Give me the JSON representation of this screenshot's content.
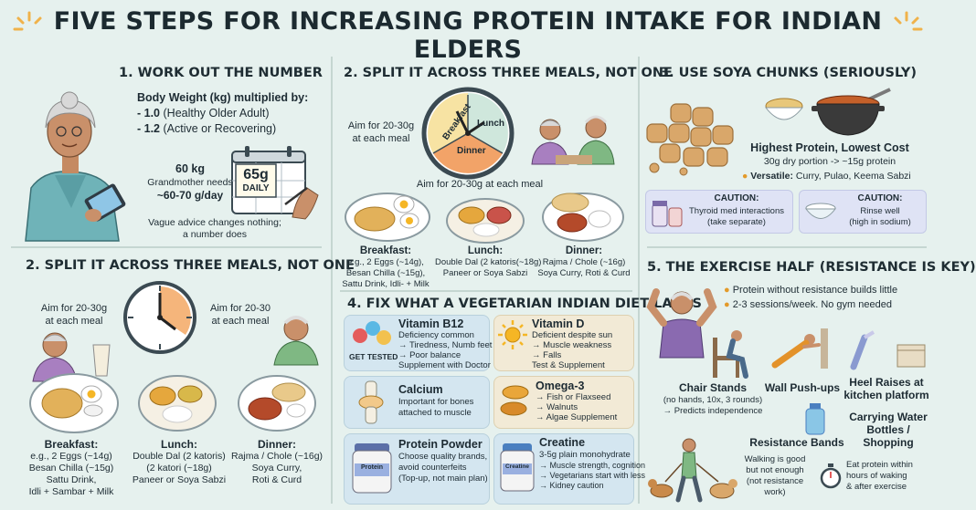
{
  "title": "FIVE STEPS FOR INCREASING PROTEIN INTAKE FOR INDIAN ELDERS",
  "s1": {
    "heading": "1. WORK OUT THE NUMBER",
    "intro": "Body Weight (kg) multiplied by:",
    "m1_val": "- 1.0",
    "m1_txt": "(Healthy Older Adult)",
    "m2_val": "- 1.2",
    "m2_txt": "(Active or Recovering)",
    "kg": "60 kg",
    "needs1": "Grandmother needs",
    "needs2": "~60-70 g/day",
    "calendar_val": "65g",
    "calendar_txt": "DAILY",
    "advice1": "Vague advice changes nothing;",
    "advice2": "a number does"
  },
  "s2top": {
    "heading": "2. SPLIT IT ACROSS THREE MEALS, NOT ONE",
    "aim1": "Aim for 20-30g",
    "aim2": "at each meal",
    "clock": [
      "Breakfast",
      "Lunch",
      "Dinner"
    ],
    "aim_mid": "Aim for 20-30g at each meal",
    "b_title": "Breakfast:",
    "b1": "e.g., 2 Eggs (~14g),",
    "b2": "Besan Chilla (~15g),",
    "b3": "Sattu Drink, Idli- + Milk",
    "l_title": "Lunch:",
    "l1": "Double Dal (2 katoris(~18g)",
    "l2": "Paneer or Soya Sabzi",
    "d_title": "Dinner:",
    "d1": "Rajma / Chole (~16g)",
    "d2": "Soya Curry, Roti & Curd"
  },
  "s2bot": {
    "heading": "2. SPLIT IT ACROSS THREE MEALS, NOT ONE",
    "aimL1": "Aim for 20-30g",
    "aimL2": "at each meal",
    "aimR1": "Aim for 20-30",
    "aimR2": "at each meal",
    "b_title": "Breakfast:",
    "b1": "e.g., 2 Eggs (~14g)",
    "b2": "Besan Chilla (~15g)",
    "b3": "Sattu Drink,",
    "b4": "Idli + Sambar + Milk",
    "l_title": "Lunch:",
    "l1": "Double Dal (2 katoris)",
    "l2": "(2 katori (~18g)",
    "l3": "Paneer or Soya Sabzi",
    "d_title": "Dinner:",
    "d1": "Rajma / Chole (~16g)",
    "d2": "Soya Curry,",
    "d3": "Roti & Curd"
  },
  "s3": {
    "heading": "3. USE SOYA CHUNKS (SERIOUSLY)",
    "headline": "Highest Protein, Lowest Cost",
    "portion": "30g dry portion -> ~15g protein",
    "versatile_label": "Versatile:",
    "versatile_txt": "Curry, Pulao, Keema Sabzi",
    "c1_title": "CAUTION:",
    "c1_1": "Thyroid med interactions",
    "c1_2": "(take separate)",
    "c2_title": "CAUTION:",
    "c2_1": "Rinse well",
    "c2_2": "(high in sodium)"
  },
  "s4": {
    "heading": "4. FIX WHAT A VEGETARIAN INDIAN DIET LACKS",
    "b12": {
      "title": "Vitamin B12",
      "l1": "Deficiency common",
      "l2": "→ Tiredness, Numb feet",
      "l3": "→ Poor balance",
      "l4": "Supplement with Doctor",
      "badge": "GET TESTED"
    },
    "vitd": {
      "title": "Vitamin D",
      "l1": "Deficient despite sun",
      "l2": "→ Muscle weakness",
      "l3": "→ Falls",
      "l4": "Test & Supplement"
    },
    "calcium": {
      "title": "Calcium",
      "l1": "Important for bones",
      "l2": "attached to muscle"
    },
    "omega": {
      "title": "Omega-3",
      "l1": "→ Fish or Flaxseed",
      "l2": "→ Walnuts",
      "l3": "→ Algae Supplement"
    },
    "powder": {
      "title": "Protein Powder",
      "l1": "Choose quality brands,",
      "l2": "avoid counterfeits",
      "l3": "(Top-up, not main plan)",
      "jar": "Protein"
    },
    "creatine": {
      "title": "Creatine",
      "l1": "3-5g plain monohydrate",
      "l2": "→ Muscle strength, cognition",
      "l3": "→ Vegetarians start with less",
      "l4": "→ Kidney caution",
      "jar": "Creatine"
    }
  },
  "s5": {
    "heading": "5. THE EXERCISE HALF (RESISTANCE IS KEY)",
    "p1": "Protein without resistance builds little",
    "p2": "2-3 sessions/week. No gym needed",
    "chair_title": "Chair Stands",
    "chair1": "(no hands, 10x, 3 rounds)",
    "chair2": "→ Predicts independence",
    "wall": "Wall Push-ups",
    "heel1": "Heel Raises at",
    "heel2": "kitchen platform",
    "bands": "Resistance Bands",
    "water1": "Carrying Water",
    "water2": "Bottles /",
    "water3": "Shopping",
    "walk1": "Walking is good",
    "walk2": "but not enough",
    "walk3": "(not resistance",
    "walk4": "work)",
    "eat1": "Eat protein within",
    "eat2": "hours of waking",
    "eat3": "& after exercise"
  }
}
